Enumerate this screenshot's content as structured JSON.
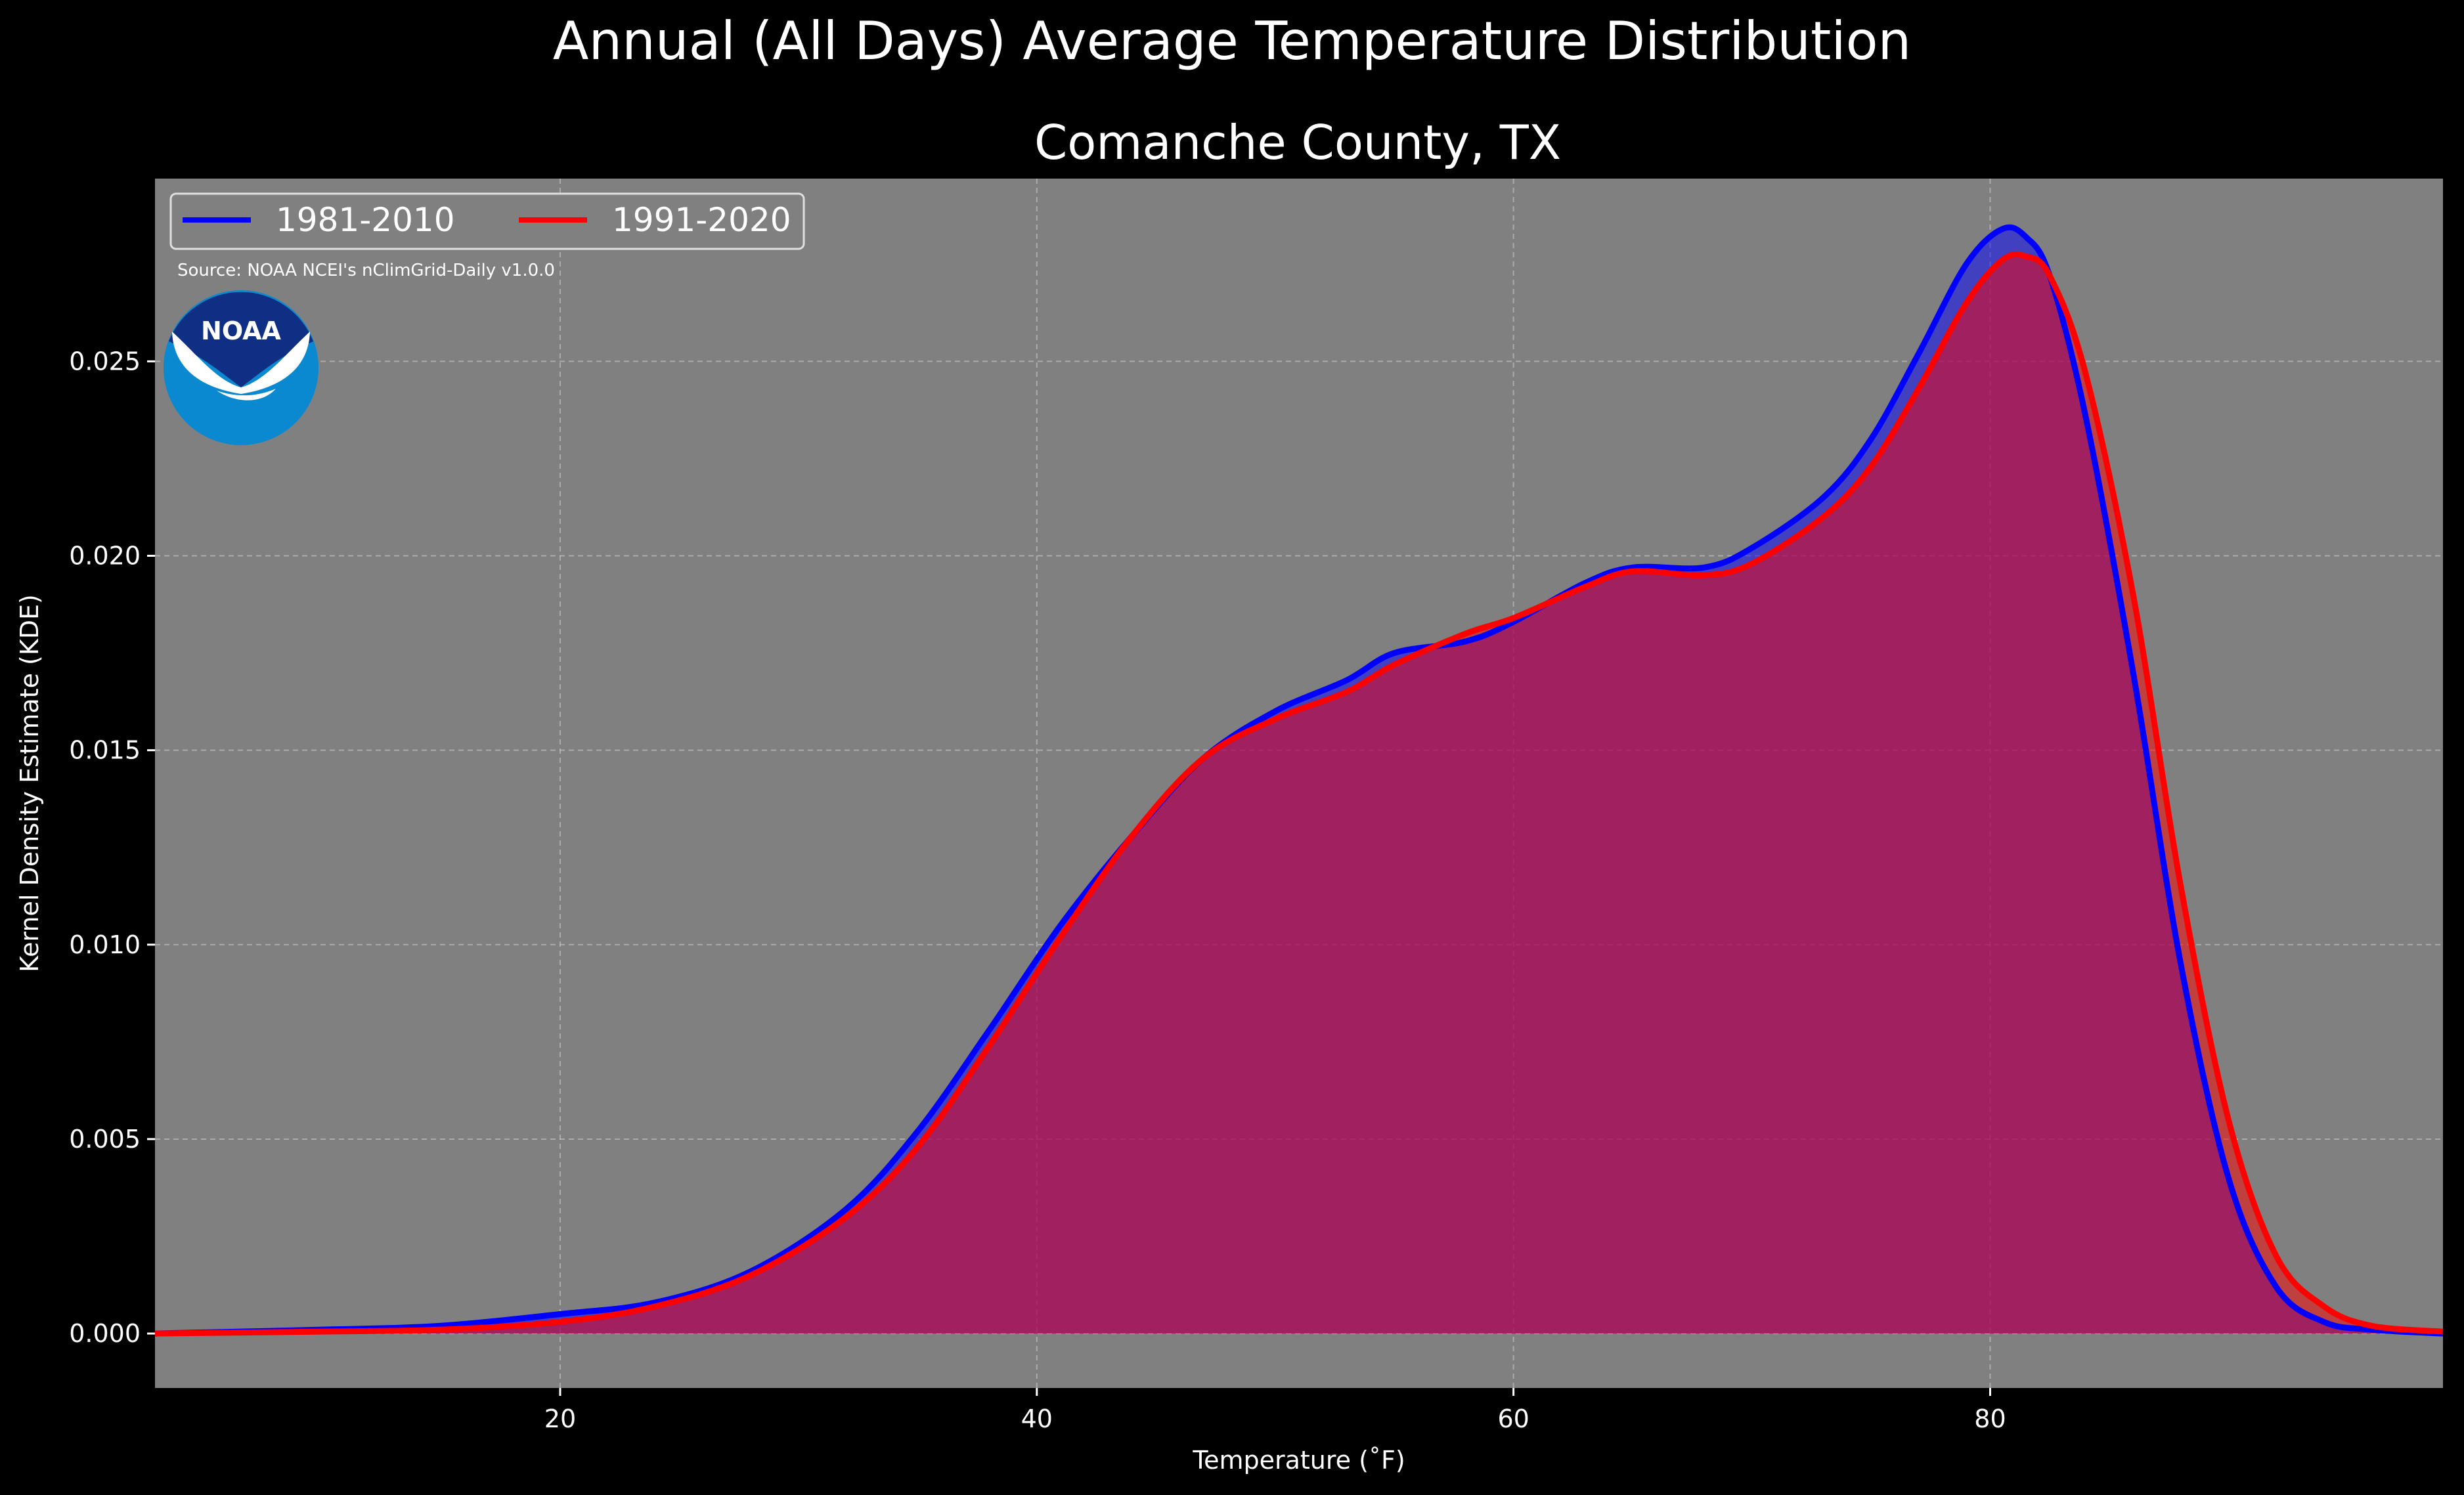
{
  "chart_data": {
    "type": "area",
    "title": "Annual (All Days) Average Temperature Distribution",
    "subtitle": "Comanche County, TX",
    "xlabel": "Temperature ($^\\circ$F)",
    "xlabel_display": "Temperature (˚F)",
    "ylabel": "Kernel Density Estimate (KDE)",
    "xlim": [
      3,
      99
    ],
    "ylim": [
      -0.0014,
      0.0297
    ],
    "x_ticks": [
      20,
      40,
      60,
      80
    ],
    "y_ticks": [
      0.0,
      0.005,
      0.01,
      0.015,
      0.02,
      0.025
    ],
    "y_tick_labels": [
      "0.000",
      "0.005",
      "0.010",
      "0.015",
      "0.020",
      "0.025"
    ],
    "grid": true,
    "legend_position": "top-left",
    "source_note": "Source: NOAA NCEI's nClimGrid-Daily v1.0.0",
    "logo_text": "NOAA",
    "background_color": "#808080",
    "series": [
      {
        "name": "1981-2010",
        "color": "#0000ff",
        "fill_color": "#0000ff",
        "points": [
          [
            3,
            0.0
          ],
          [
            10,
            0.0001
          ],
          [
            15,
            0.0002
          ],
          [
            20,
            0.0005
          ],
          [
            24,
            0.0008
          ],
          [
            28,
            0.0016
          ],
          [
            32,
            0.0032
          ],
          [
            35,
            0.0052
          ],
          [
            38,
            0.0078
          ],
          [
            41,
            0.0105
          ],
          [
            44,
            0.0128
          ],
          [
            47,
            0.0148
          ],
          [
            50,
            0.016
          ],
          [
            53,
            0.0168
          ],
          [
            55,
            0.0175
          ],
          [
            58,
            0.0178
          ],
          [
            60,
            0.0183
          ],
          [
            63,
            0.0193
          ],
          [
            65,
            0.0197
          ],
          [
            68,
            0.0197
          ],
          [
            70,
            0.0202
          ],
          [
            73,
            0.0215
          ],
          [
            75,
            0.023
          ],
          [
            77,
            0.0252
          ],
          [
            79,
            0.0275
          ],
          [
            80.5,
            0.0284
          ],
          [
            81.5,
            0.0282
          ],
          [
            82.5,
            0.0272
          ],
          [
            84,
            0.0236
          ],
          [
            86,
            0.017
          ],
          [
            88,
            0.0095
          ],
          [
            90,
            0.004
          ],
          [
            92,
            0.0012
          ],
          [
            94,
            0.0003
          ],
          [
            96,
            0.0001
          ],
          [
            99,
            0.0
          ]
        ]
      },
      {
        "name": "1991-2020",
        "color": "#ff0000",
        "fill_color": "#ff0000",
        "points": [
          [
            3,
            0.0
          ],
          [
            10,
            5e-05
          ],
          [
            15,
            0.0001
          ],
          [
            20,
            0.0003
          ],
          [
            24,
            0.0007
          ],
          [
            28,
            0.0015
          ],
          [
            32,
            0.003
          ],
          [
            35,
            0.0048
          ],
          [
            38,
            0.0074
          ],
          [
            41,
            0.0102
          ],
          [
            44,
            0.0128
          ],
          [
            47,
            0.0148
          ],
          [
            50,
            0.0158
          ],
          [
            53,
            0.0165
          ],
          [
            55,
            0.0172
          ],
          [
            58,
            0.018
          ],
          [
            60,
            0.0184
          ],
          [
            63,
            0.0192
          ],
          [
            65,
            0.0196
          ],
          [
            68,
            0.0195
          ],
          [
            70,
            0.0198
          ],
          [
            73,
            0.021
          ],
          [
            75,
            0.0223
          ],
          [
            77,
            0.0243
          ],
          [
            79,
            0.0265
          ],
          [
            80.5,
            0.0276
          ],
          [
            81.5,
            0.0277
          ],
          [
            82.5,
            0.0272
          ],
          [
            84,
            0.0247
          ],
          [
            86,
            0.019
          ],
          [
            88,
            0.0115
          ],
          [
            90,
            0.0055
          ],
          [
            92,
            0.002
          ],
          [
            94,
            0.0007
          ],
          [
            96,
            0.0002
          ],
          [
            99,
            5e-05
          ]
        ]
      }
    ]
  }
}
